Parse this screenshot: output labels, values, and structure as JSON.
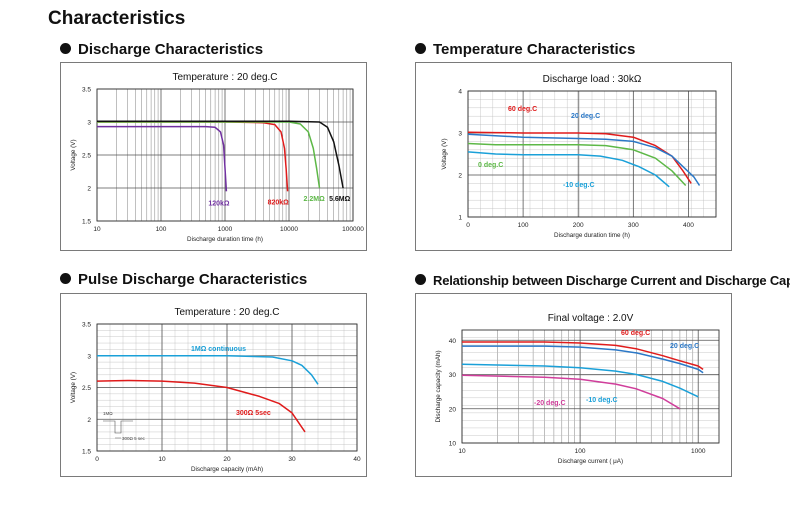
{
  "page": {
    "title": "Characteristics",
    "sections": [
      "Discharge Characteristics",
      "Temperature Characteristics",
      "Pulse Discharge Characteristics",
      "Relationship between Discharge Current and Discharge Capacity"
    ]
  },
  "colors": {
    "purple": "#7030a0",
    "red": "#e01b1b",
    "green": "#5db847",
    "black": "#111111",
    "blue": "#2b78c7",
    "cyan": "#1aa0d8",
    "deepgreen": "#0f9a6a",
    "magenta": "#d03e9b",
    "grid": "#555555"
  },
  "chart_data": [
    {
      "id": "discharge",
      "type": "line",
      "title": "Temperature : 20 deg.C",
      "xlabel": "Discharge duration time (h)",
      "ylabel": "Voltage (V)",
      "x_scale": "log",
      "xlim": [
        10,
        100000
      ],
      "ylim": [
        1.5,
        3.5
      ],
      "xticks": [
        "10",
        "100",
        "1000",
        "10000",
        "100000"
      ],
      "yticks": [
        "1.5",
        "2",
        "2.5",
        "3",
        "3.5"
      ],
      "series": [
        {
          "name": "120kΩ",
          "color": "purple",
          "x": [
            10,
            100,
            300,
            500,
            700,
            850,
            950,
            1000,
            1050
          ],
          "y": [
            2.93,
            2.93,
            2.93,
            2.93,
            2.92,
            2.85,
            2.65,
            2.3,
            1.95
          ]
        },
        {
          "name": "820kΩ",
          "color": "red",
          "x": [
            10,
            1000,
            4000,
            6000,
            7500,
            8500,
            9000,
            9500
          ],
          "y": [
            3.0,
            3.0,
            2.99,
            2.96,
            2.85,
            2.6,
            2.3,
            1.95
          ]
        },
        {
          "name": "2.2MΩ",
          "color": "green",
          "x": [
            10,
            1000,
            10000,
            15000,
            20000,
            24000,
            27000,
            30000
          ],
          "y": [
            3.0,
            3.0,
            3.0,
            2.97,
            2.85,
            2.6,
            2.3,
            2.0
          ]
        },
        {
          "name": "5.6MΩ",
          "color": "black",
          "x": [
            10,
            1000,
            10000,
            30000,
            40000,
            50000,
            60000,
            70000
          ],
          "y": [
            3.01,
            3.01,
            3.01,
            3.0,
            2.92,
            2.7,
            2.35,
            2.0
          ]
        }
      ]
    },
    {
      "id": "temperature",
      "type": "line",
      "title": "Discharge load : 30kΩ",
      "xlabel": "Discharge duration time (h)",
      "ylabel": "Voltage (V)",
      "xlim": [
        0,
        450
      ],
      "ylim": [
        1,
        4
      ],
      "xticks": [
        "0",
        "100",
        "200",
        "300",
        "400"
      ],
      "yticks": [
        "1",
        "2",
        "3",
        "4"
      ],
      "series": [
        {
          "name": "60 deg.C",
          "color": "red",
          "x": [
            0,
            50,
            100,
            200,
            250,
            300,
            340,
            370,
            390,
            405
          ],
          "y": [
            3.02,
            3.01,
            3.0,
            3.0,
            2.98,
            2.9,
            2.7,
            2.45,
            2.1,
            1.8
          ]
        },
        {
          "name": "20 deg.C",
          "color": "blue",
          "x": [
            0,
            100,
            200,
            250,
            300,
            340,
            370,
            390,
            410,
            420
          ],
          "y": [
            2.97,
            2.9,
            2.87,
            2.85,
            2.8,
            2.65,
            2.45,
            2.2,
            1.95,
            1.75
          ]
        },
        {
          "name": "0 deg.C",
          "color": "green",
          "x": [
            0,
            50,
            100,
            200,
            250,
            300,
            340,
            370,
            395
          ],
          "y": [
            2.75,
            2.72,
            2.72,
            2.72,
            2.7,
            2.6,
            2.4,
            2.1,
            1.75
          ]
        },
        {
          "name": "-10 deg.C",
          "color": "cyan",
          "x": [
            0,
            50,
            100,
            200,
            240,
            280,
            310,
            340,
            365
          ],
          "y": [
            2.55,
            2.5,
            2.48,
            2.48,
            2.45,
            2.35,
            2.2,
            2.0,
            1.72
          ]
        }
      ]
    },
    {
      "id": "pulse",
      "type": "line",
      "title": "Temperature : 20 deg.C",
      "xlabel": "Discharge capacity (mAh)",
      "ylabel": "Voltage (V)",
      "xlim": [
        0,
        40
      ],
      "ylim": [
        1.5,
        3.5
      ],
      "xticks": [
        "0",
        "10",
        "20",
        "30",
        "40"
      ],
      "yticks": [
        "1.5",
        "2",
        "2.5",
        "3",
        "3.5"
      ],
      "series": [
        {
          "name": "1MΩ continuous",
          "color": "cyan",
          "x": [
            0,
            10,
            20,
            27,
            30,
            31.5,
            33,
            34
          ],
          "y": [
            3.0,
            3.0,
            3.0,
            2.98,
            2.92,
            2.85,
            2.7,
            2.55
          ]
        },
        {
          "name": "300Ω 5sec",
          "color": "red",
          "x": [
            0,
            5,
            10,
            15,
            20,
            25,
            28,
            30,
            31,
            32
          ],
          "y": [
            2.6,
            2.61,
            2.6,
            2.57,
            2.5,
            2.36,
            2.25,
            2.1,
            1.95,
            1.8
          ]
        }
      ],
      "inset_labels": [
        "1MΩ",
        "300Ω 5 sec"
      ]
    },
    {
      "id": "current",
      "type": "line",
      "title": "Final voltage : 2.0V",
      "xlabel": "Discharge current ( μA)",
      "ylabel": "Discharge capacity (mAh)",
      "x_scale": "log",
      "xlim": [
        10,
        1500
      ],
      "ylim": [
        10,
        43
      ],
      "xticks": [
        "10",
        "100",
        "1000"
      ],
      "yticks": [
        "10",
        "20",
        "30",
        "40"
      ],
      "series": [
        {
          "name": "60 deg.C",
          "color": "red",
          "x": [
            10,
            50,
            100,
            200,
            300,
            500,
            700,
            1000,
            1100
          ],
          "y": [
            39.5,
            39.5,
            39.2,
            38.5,
            37.5,
            35.5,
            34,
            32.5,
            31.5
          ]
        },
        {
          "name": "20 deg.C",
          "color": "blue",
          "x": [
            10,
            50,
            100,
            200,
            300,
            500,
            700,
            1000,
            1100
          ],
          "y": [
            38.3,
            38.3,
            38,
            37.2,
            36.3,
            34.5,
            33.2,
            31.5,
            30.5
          ]
        },
        {
          "name": "-10 deg.C",
          "color": "cyan",
          "x": [
            10,
            50,
            100,
            200,
            300,
            500,
            700,
            1000
          ],
          "y": [
            33,
            32.5,
            32,
            31,
            30,
            28,
            26,
            23.5
          ]
        },
        {
          "name": "-20 deg.C",
          "color": "magenta",
          "x": [
            10,
            50,
            100,
            200,
            300,
            500,
            700
          ],
          "y": [
            29.8,
            29.2,
            28.6,
            27.2,
            25.8,
            23,
            20
          ]
        }
      ]
    }
  ]
}
